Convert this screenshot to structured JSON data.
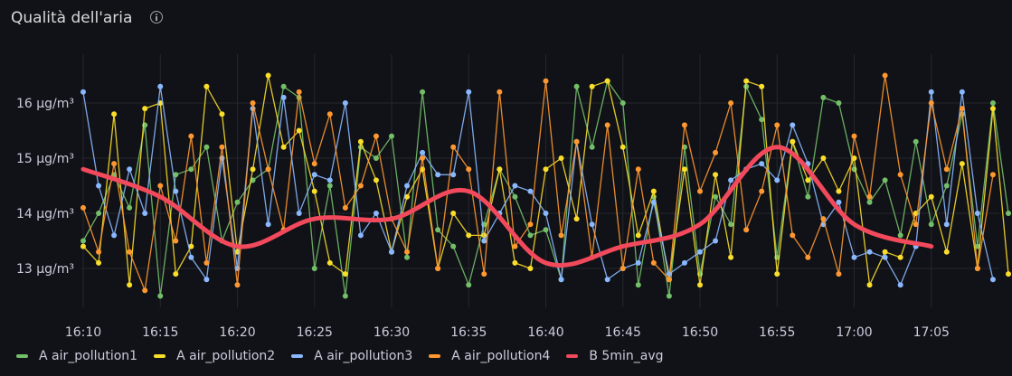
{
  "panel": {
    "title": "Qualità dell'aria"
  },
  "chart_data": {
    "type": "line",
    "title": "Qualità dell'aria",
    "xlabel": "",
    "ylabel": "",
    "x_ticks": [
      "16:10",
      "16:15",
      "16:20",
      "16:25",
      "16:30",
      "16:35",
      "16:40",
      "16:45",
      "16:50",
      "16:55",
      "17:00",
      "17:05"
    ],
    "y_ticks": [
      "13 µg/m³",
      "14 µg/m³",
      "15 µg/m³",
      "16 µg/m³"
    ],
    "ylim": [
      12.3,
      17.0
    ],
    "xlim_minutes": [
      0,
      60
    ],
    "legend_position": "bottom-left",
    "grid": true,
    "series": [
      {
        "name": "A air_pollution1",
        "color": "#73bf69",
        "x_step": 1,
        "values": [
          13.5,
          14.0,
          14.7,
          14.1,
          15.6,
          12.5,
          14.7,
          14.8,
          15.2,
          13.5,
          14.2,
          14.6,
          14.8,
          16.3,
          16.1,
          13.0,
          14.5,
          12.5,
          15.2,
          15.0,
          15.4,
          13.2,
          16.2,
          13.7,
          13.4,
          12.7,
          13.8,
          14.8,
          14.3,
          13.6,
          13.7,
          12.8,
          16.3,
          15.2,
          16.4,
          16.0,
          12.7,
          14.3,
          12.5,
          15.2,
          12.9,
          14.3,
          13.8,
          16.3,
          15.7,
          13.2,
          15.3,
          14.3,
          16.1,
          16.0,
          14.8,
          14.2,
          14.6,
          13.6,
          15.3,
          13.8,
          14.5,
          15.8,
          13.4,
          16.0,
          14.0
        ]
      },
      {
        "name": "A air_pollution2",
        "color": "#fade2a",
        "x_step": 1,
        "values": [
          13.4,
          13.1,
          15.8,
          12.7,
          15.9,
          16.0,
          12.9,
          13.4,
          16.3,
          15.8,
          13.3,
          14.8,
          16.5,
          15.2,
          15.5,
          14.4,
          13.1,
          12.9,
          15.3,
          14.6,
          13.3,
          14.3,
          14.8,
          13.0,
          14.0,
          13.6,
          13.6,
          14.8,
          13.1,
          13.0,
          14.8,
          15.0,
          13.9,
          16.3,
          16.4,
          15.2,
          13.6,
          14.4,
          12.8,
          14.8,
          12.7,
          14.7,
          13.2,
          16.4,
          16.3,
          12.9,
          15.3,
          14.6,
          15.0,
          14.4,
          15.0,
          12.7,
          13.3,
          13.2,
          14.0,
          14.3,
          13.3,
          14.9,
          13.0,
          15.9,
          12.9
        ]
      },
      {
        "name": "A air_pollution3",
        "color": "#8ab8ff",
        "x_step": 1,
        "values": [
          16.2,
          14.5,
          13.6,
          14.8,
          14.0,
          16.3,
          14.4,
          13.2,
          12.8,
          15.0,
          13.0,
          15.9,
          13.8,
          16.1,
          14.0,
          14.7,
          14.6,
          16.0,
          13.6,
          14.0,
          13.3,
          14.5,
          15.1,
          14.7,
          14.7,
          16.2,
          13.5,
          14.0,
          14.5,
          14.4,
          14.0,
          12.8,
          15.3,
          13.8,
          12.8,
          13.0,
          13.1,
          14.2,
          12.9,
          13.1,
          13.3,
          13.5,
          14.6,
          14.8,
          14.9,
          14.6,
          15.6,
          14.9,
          13.8,
          14.2,
          13.2,
          13.3,
          13.2,
          12.7,
          13.4,
          16.2,
          13.8,
          16.2,
          14.0,
          12.8
        ]
      },
      {
        "name": "A air_pollution4",
        "color": "#ff9830",
        "x_step": 1,
        "values": [
          14.1,
          13.3,
          14.9,
          13.3,
          12.6,
          14.5,
          13.5,
          15.4,
          13.1,
          15.2,
          12.7,
          16.0,
          14.8,
          13.7,
          16.2,
          14.9,
          15.8,
          14.1,
          14.5,
          15.4,
          13.9,
          13.3,
          15.0,
          13.0,
          15.2,
          14.8,
          12.9,
          16.2,
          13.4,
          13.8,
          16.4,
          13.6,
          15.3,
          13.2,
          15.6,
          13.0,
          14.8,
          13.1,
          12.8,
          15.6,
          14.4,
          15.1,
          16.0,
          13.7,
          14.4,
          15.6,
          13.6,
          13.2,
          13.9,
          12.9,
          15.4,
          14.3,
          16.5,
          14.7,
          13.8,
          16.0,
          14.8,
          15.9,
          13.0,
          14.7
        ]
      },
      {
        "name": "B 5min_avg",
        "color": "#f2495c",
        "x_step": 5,
        "values": [
          14.8,
          14.3,
          13.4,
          13.9,
          13.9,
          14.4,
          13.1,
          13.4,
          13.8,
          15.2,
          13.8,
          13.4
        ]
      }
    ]
  }
}
